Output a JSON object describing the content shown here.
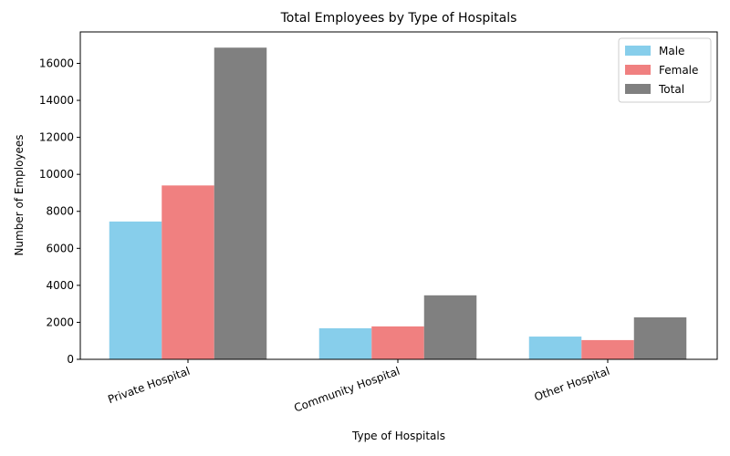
{
  "chart_data": {
    "type": "bar",
    "title": "Total Employees by Type of Hospitals",
    "xlabel": "Type of Hospitals",
    "ylabel": "Number of Employees",
    "categories": [
      "Private Hospital",
      "Community Hospital",
      "Other Hospital"
    ],
    "series": [
      {
        "name": "Male",
        "color": "#87ceeb",
        "values": [
          7450,
          1680,
          1230
        ]
      },
      {
        "name": "Female",
        "color": "#f08080",
        "values": [
          9400,
          1780,
          1040
        ]
      },
      {
        "name": "Total",
        "color": "#808080",
        "values": [
          16850,
          3460,
          2270
        ]
      }
    ],
    "ylim": [
      0,
      17700
    ],
    "yticks": [
      0,
      2000,
      4000,
      6000,
      8000,
      10000,
      12000,
      14000,
      16000
    ],
    "grid": false,
    "legend": "top-right"
  }
}
